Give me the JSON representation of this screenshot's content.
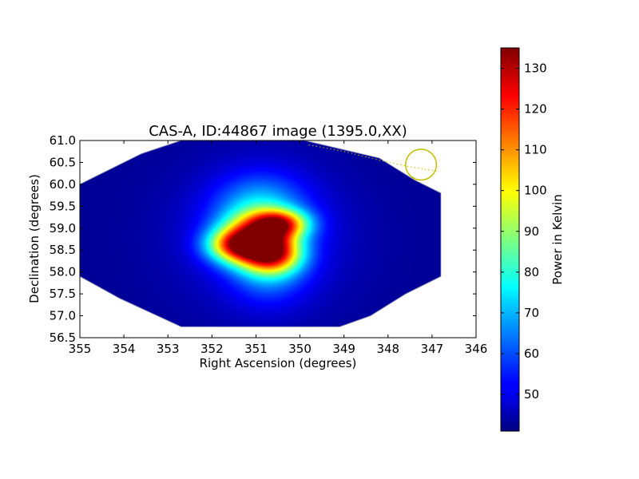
{
  "chart_data": {
    "type": "heatmap",
    "title": "CAS-A, ID:44867 image (1395.0,XX)",
    "xlabel": "Right Ascension (degrees)",
    "ylabel": "Declination (degrees)",
    "xlim": [
      355,
      346
    ],
    "ylim": [
      56.5,
      61.0
    ],
    "x_ticks": [
      "355",
      "354",
      "353",
      "352",
      "351",
      "350",
      "349",
      "348",
      "347",
      "346"
    ],
    "y_ticks": [
      "56.5",
      "57.0",
      "57.5",
      "58.0",
      "58.5",
      "59.0",
      "59.5",
      "60.0",
      "60.5",
      "61.0"
    ],
    "colormap": "jet",
    "colorbar": {
      "label": "Power in Kelvin",
      "range": [
        41,
        135
      ],
      "ticks": [
        "50",
        "60",
        "70",
        "80",
        "90",
        "100",
        "110",
        "120",
        "130"
      ]
    },
    "background_value": 43,
    "footprint_radec": [
      [
        355.0,
        60.0
      ],
      [
        354.6,
        60.2
      ],
      [
        353.6,
        60.7
      ],
      [
        352.7,
        61.0
      ],
      [
        349.9,
        61.0
      ],
      [
        348.2,
        60.6
      ],
      [
        347.4,
        60.1
      ],
      [
        346.8,
        59.8
      ],
      [
        346.8,
        57.9
      ],
      [
        347.6,
        57.5
      ],
      [
        348.4,
        57.0
      ],
      [
        349.1,
        56.75
      ],
      [
        352.7,
        56.75
      ],
      [
        354.1,
        57.4
      ],
      [
        355.0,
        57.9
      ]
    ],
    "sources": [
      {
        "ra": 351.05,
        "dec": 58.72,
        "peak": 132,
        "sigma_ra": 0.55,
        "sigma_dec": 0.38
      },
      {
        "ra": 350.45,
        "dec": 59.1,
        "peak": 128,
        "sigma_ra": 0.45,
        "sigma_dec": 0.22
      },
      {
        "ra": 350.6,
        "dec": 58.4,
        "peak": 120,
        "sigma_ra": 0.45,
        "sigma_dec": 0.3
      },
      {
        "ra": 351.5,
        "dec": 58.6,
        "peak": 105,
        "sigma_ra": 0.45,
        "sigma_dec": 0.25
      },
      {
        "ra": 350.9,
        "dec": 59.4,
        "peak": 82,
        "sigma_ra": 0.7,
        "sigma_dec": 0.55
      },
      {
        "ra": 350.7,
        "dec": 58.1,
        "peak": 72,
        "sigma_ra": 0.6,
        "sigma_dec": 0.55
      },
      {
        "ra": 350.85,
        "dec": 58.8,
        "peak": 58,
        "sigma_ra": 1.4,
        "sigma_dec": 1.2
      }
    ],
    "marker": {
      "type": "circle",
      "ra": 347.25,
      "dec": 60.45,
      "radius_deg": 0.35,
      "color": "#bfbf00"
    },
    "dotted_track": {
      "color": "#bfbf00",
      "points": [
        [
          349.8,
          60.9
        ],
        [
          349.0,
          60.75
        ],
        [
          348.2,
          60.55
        ],
        [
          347.5,
          60.4
        ],
        [
          346.9,
          60.3
        ]
      ]
    }
  }
}
